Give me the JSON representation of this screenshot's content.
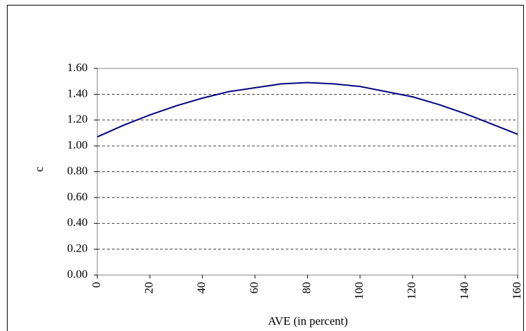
{
  "chart_data": {
    "type": "line",
    "x_label": "AVE (in percent)",
    "y_label": "c",
    "x": [
      0,
      10,
      20,
      30,
      40,
      50,
      60,
      70,
      80,
      90,
      100,
      110,
      120,
      130,
      140,
      150,
      160
    ],
    "series": [
      {
        "name": "c",
        "color": "#000080",
        "values": [
          1.07,
          1.16,
          1.24,
          1.31,
          1.37,
          1.42,
          1.45,
          1.48,
          1.49,
          1.48,
          1.46,
          1.42,
          1.38,
          1.32,
          1.25,
          1.17,
          1.09
        ]
      }
    ],
    "xlim": [
      0,
      160
    ],
    "xticks": [
      0,
      20,
      40,
      60,
      80,
      100,
      120,
      140,
      160
    ],
    "ylim": [
      0,
      1.6
    ],
    "yticks": [
      {
        "value": 0,
        "label": "0.00"
      },
      {
        "value": 0.2,
        "label": "0.20"
      },
      {
        "value": 0.4,
        "label": "0.40"
      },
      {
        "value": 0.6,
        "label": "0.60"
      },
      {
        "value": 0.8,
        "label": "0.80"
      },
      {
        "value": 1.0,
        "label": "1.00"
      },
      {
        "value": 1.2,
        "label": "1.20"
      },
      {
        "value": 1.4,
        "label": "1.40"
      },
      {
        "value": 1.6,
        "label": "1.60"
      }
    ],
    "grid": true
  }
}
